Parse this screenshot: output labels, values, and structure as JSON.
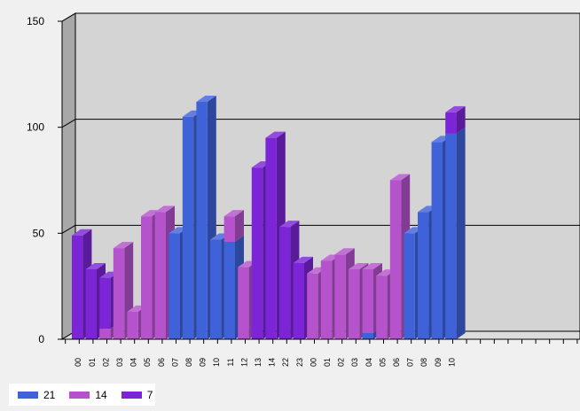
{
  "chart_data": {
    "type": "bar",
    "style": "3d-stacked-column",
    "categories": [
      "00",
      "01",
      "02",
      "03",
      "04",
      "05",
      "06",
      "07",
      "08",
      "09",
      "10",
      "11",
      "12",
      "13",
      "14",
      "22",
      "23",
      "00",
      "01",
      "02",
      "03",
      "04",
      "05",
      "06",
      "07",
      "08",
      "09",
      "10"
    ],
    "series": [
      {
        "name": "21",
        "color": "#3f62d9",
        "values": [
          0,
          0,
          0,
          0,
          0,
          0,
          0,
          50,
          105,
          112,
          47,
          46,
          0,
          0,
          0,
          0,
          0,
          0,
          0,
          0,
          0,
          3,
          0,
          0,
          50,
          60,
          93,
          97
        ]
      },
      {
        "name": "14",
        "color": "#b553cc",
        "values": [
          0,
          0,
          5,
          43,
          13,
          58,
          60,
          0,
          0,
          0,
          0,
          12,
          34,
          0,
          0,
          0,
          0,
          31,
          37,
          40,
          33,
          30,
          30,
          75,
          0,
          0,
          0,
          0
        ]
      },
      {
        "name": "7",
        "color": "#7b25d6",
        "values": [
          49,
          33,
          24,
          0,
          0,
          0,
          0,
          0,
          0,
          0,
          0,
          0,
          0,
          81,
          95,
          53,
          36,
          0,
          0,
          0,
          0,
          0,
          0,
          0,
          0,
          0,
          0,
          10
        ]
      }
    ],
    "yticks": [
      0,
      50,
      100,
      150
    ],
    "ylim": [
      0,
      150
    ],
    "slots": 40,
    "grid": true,
    "legend": "bottom-left",
    "xlabel": "",
    "ylabel": "",
    "title": ""
  }
}
